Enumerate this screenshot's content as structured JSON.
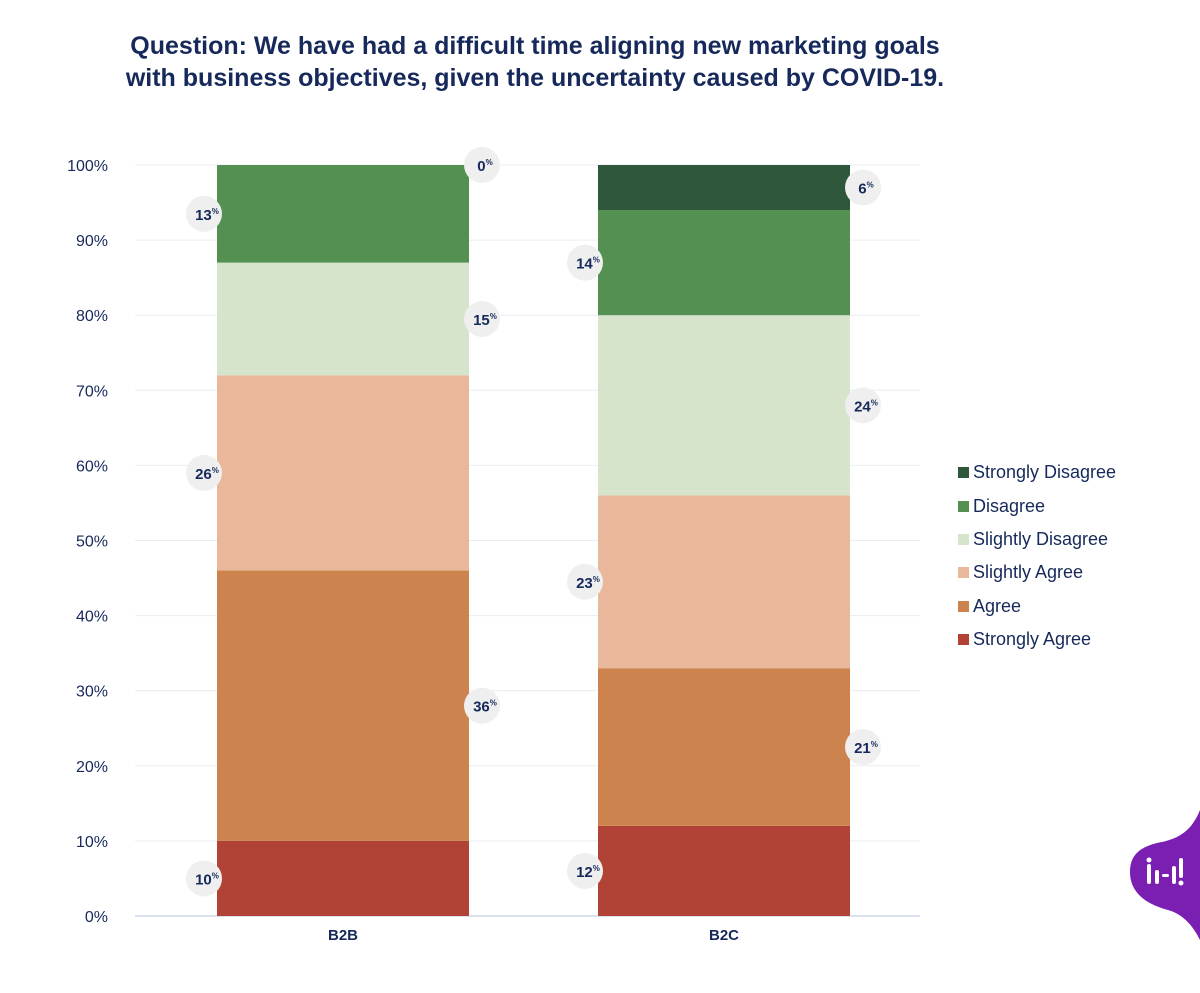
{
  "title_lines": [
    "Question: We have had a difficult time aligning new marketing goals",
    "with business objectives, given the uncertainty caused by COVID-19."
  ],
  "logo_icon": "brand-logo-icon",
  "chart_data": {
    "type": "bar",
    "stacked": true,
    "title": "Question: We have had a difficult time aligning new marketing goals with business objectives, given the uncertainty caused by COVID-19.",
    "xlabel": "",
    "ylabel": "",
    "ylim": [
      0,
      100
    ],
    "yticks": [
      0,
      10,
      20,
      30,
      40,
      50,
      60,
      70,
      80,
      90,
      100
    ],
    "ytick_labels": [
      "0%",
      "10%",
      "20%",
      "30%",
      "40%",
      "50%",
      "60%",
      "70%",
      "80%",
      "90%",
      "100%"
    ],
    "categories": [
      "B2B",
      "B2C"
    ],
    "series": [
      {
        "name": "Strongly Agree",
        "color": "#b04336",
        "values": [
          10,
          12
        ],
        "labels": [
          "10",
          "12"
        ]
      },
      {
        "name": "Agree",
        "color": "#cd834d",
        "values": [
          36,
          21
        ],
        "labels": [
          "36",
          "21"
        ]
      },
      {
        "name": "Slightly Agree",
        "color": "#e9b89a",
        "values": [
          26,
          23
        ],
        "labels": [
          "26",
          "23"
        ]
      },
      {
        "name": "Slightly Disagree",
        "color": "#d6e4cb",
        "values": [
          15,
          24
        ],
        "labels": [
          "15",
          "24"
        ]
      },
      {
        "name": "Disagree",
        "color": "#539051",
        "values": [
          13,
          14
        ],
        "labels": [
          "13",
          "14"
        ]
      },
      {
        "name": "Strongly Disagree",
        "color": "#2e573b",
        "values": [
          0,
          6
        ],
        "labels": [
          "0",
          "6"
        ]
      }
    ],
    "percent_suffix": "%",
    "legend_position": "right",
    "grid": true
  }
}
